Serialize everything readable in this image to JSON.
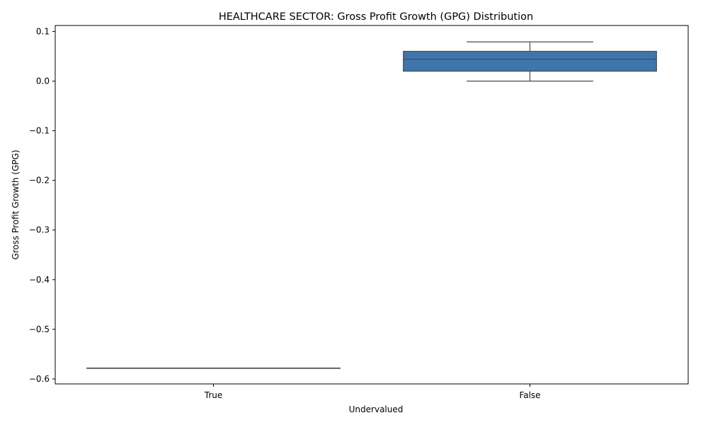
{
  "chart_data": {
    "type": "box",
    "title": "HEALTHCARE SECTOR: Gross Profit Growth (GPG) Distribution",
    "xlabel": "Undervalued",
    "ylabel": "Gross Profit Growth (GPG)",
    "ylim": [
      -0.61,
      0.112
    ],
    "yticks": [
      0.1,
      0.0,
      -0.1,
      -0.2,
      -0.3,
      -0.4,
      -0.5,
      -0.6
    ],
    "ytick_labels": [
      "0.1",
      "0.0",
      "−0.1",
      "−0.2",
      "−0.3",
      "−0.4",
      "−0.5",
      "−0.6"
    ],
    "categories": [
      "True",
      "False"
    ],
    "boxes": [
      {
        "category": "True",
        "whisker_low": -0.578,
        "q1": -0.578,
        "median": -0.578,
        "q3": -0.578,
        "whisker_high": -0.578
      },
      {
        "category": "False",
        "whisker_low": 0.0,
        "q1": 0.02,
        "median": 0.044,
        "q3": 0.06,
        "whisker_high": 0.079
      }
    ],
    "grid": false,
    "colors": {
      "box_fill": "#3e76ab",
      "line": "#4a4a4a",
      "axis": "#000000"
    }
  }
}
